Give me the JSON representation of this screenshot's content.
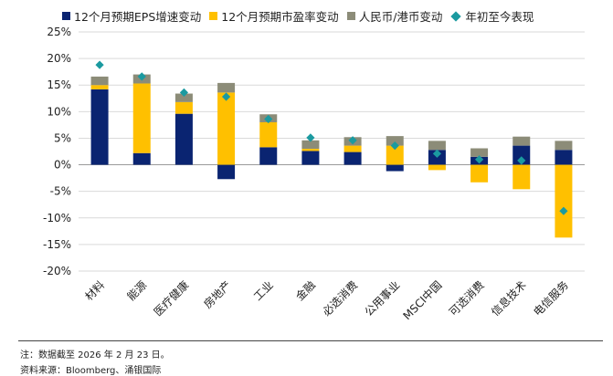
{
  "legend": [
    {
      "label": "12个月预期EPS增速变动",
      "color": "#0a2471",
      "shape": "square"
    },
    {
      "label": "12个月预期市盈率变动",
      "color": "#ffc000",
      "shape": "square"
    },
    {
      "label": "人民币/港币变动",
      "color": "#8c8c78",
      "shape": "square"
    },
    {
      "label": "年初至今表现",
      "color": "#1b9aa0",
      "shape": "diamond"
    }
  ],
  "chart_data": {
    "type": "bar",
    "stacked": true,
    "title": "",
    "xlabel": "",
    "ylabel": "",
    "ylim": [
      -20,
      25
    ],
    "yticks": [
      25,
      20,
      15,
      10,
      5,
      0,
      -5,
      -10,
      -15,
      -20
    ],
    "ytick_labels": [
      "25%",
      "20%",
      "15%",
      "10%",
      "5%",
      "0%",
      "-5%",
      "-10%",
      "-15%",
      "-20%"
    ],
    "categories": [
      "材料",
      "能源",
      "医疗健康",
      "房地产",
      "工业",
      "金融",
      "必选消费",
      "公用事业",
      "MSCI中国",
      "可选消费",
      "信息技术",
      "电信服务"
    ],
    "series": [
      {
        "name": "12个月预期EPS增速变动",
        "color": "#0a2471",
        "kind": "bar",
        "values": [
          14.2,
          2.2,
          9.6,
          -2.7,
          3.3,
          2.6,
          2.4,
          -1.2,
          2.8,
          1.5,
          3.6,
          2.8
        ]
      },
      {
        "name": "12个月预期市盈率变动",
        "color": "#ffc000",
        "kind": "bar",
        "values": [
          0.8,
          13.1,
          2.2,
          13.6,
          4.7,
          0.4,
          1.2,
          3.6,
          -1.0,
          -3.3,
          -4.6,
          -13.7
        ]
      },
      {
        "name": "人民币/港币变动",
        "color": "#8c8c78",
        "kind": "bar",
        "values": [
          1.6,
          1.7,
          1.6,
          1.8,
          1.5,
          1.6,
          1.6,
          1.8,
          1.7,
          1.6,
          1.7,
          1.7
        ]
      },
      {
        "name": "年初至今表现",
        "color": "#1b9aa0",
        "kind": "marker",
        "values": [
          18.8,
          16.6,
          13.6,
          12.8,
          8.6,
          5.1,
          4.6,
          3.6,
          2.1,
          1.0,
          0.8,
          -8.7
        ]
      }
    ]
  },
  "footer": {
    "note": "注：数据截至 2026 年 2 月 23 日。",
    "source": "资料来源：Bloomberg、涌银国际"
  }
}
